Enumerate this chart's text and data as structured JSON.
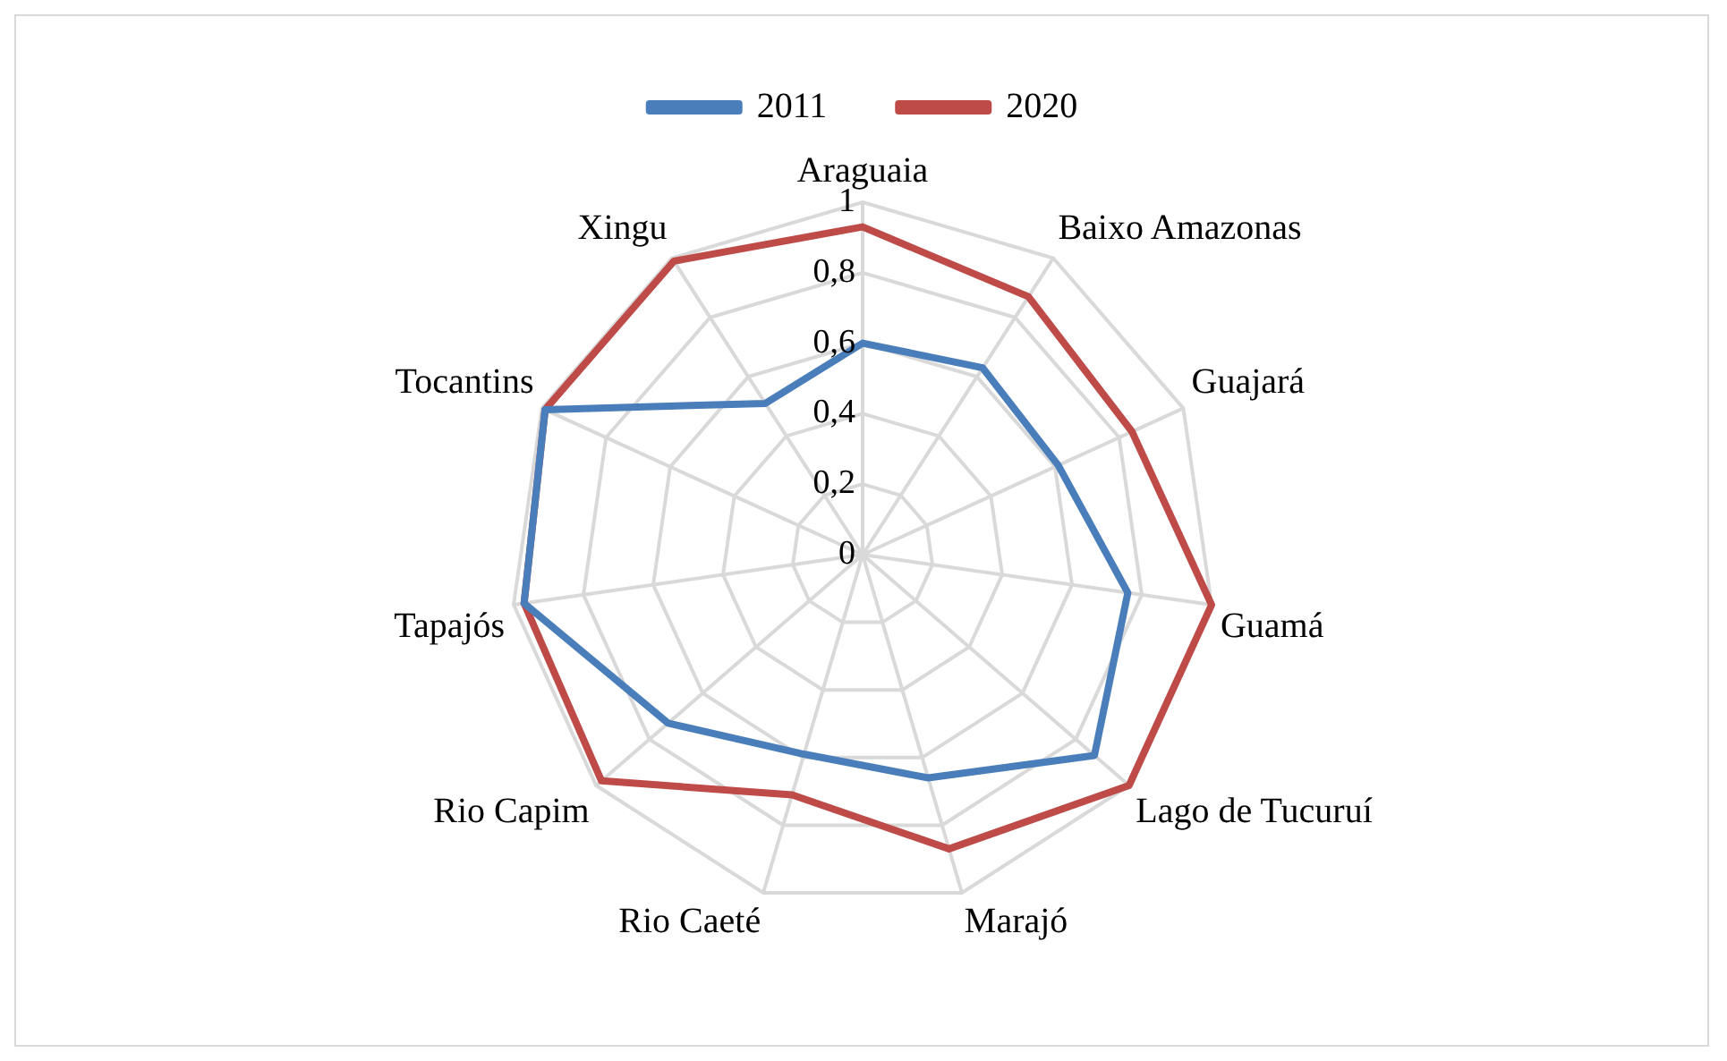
{
  "chart_data": {
    "type": "radar",
    "categories": [
      "Araguaia",
      "Baixo Amazonas",
      "Guajará",
      "Guamá",
      "Lago de Tucuruí",
      "Marajó",
      "Rio Caeté",
      "Rio Capim",
      "Tapajós",
      "Tocantins",
      "Xingu"
    ],
    "series": [
      {
        "name": "2011",
        "color": "#4a7ebb",
        "values": [
          0.6,
          0.63,
          0.61,
          0.76,
          0.87,
          0.66,
          0.59,
          0.73,
          0.97,
          0.99,
          0.51
        ]
      },
      {
        "name": "2020",
        "color": "#be4b48",
        "values": [
          0.93,
          0.87,
          0.84,
          1.0,
          1.0,
          0.87,
          0.71,
          0.98,
          0.97,
          0.99,
          0.99
        ]
      }
    ],
    "ylim": [
      0,
      1
    ],
    "yticks": [
      0,
      {
        "value": 0.2,
        "label": "0,2"
      },
      {
        "value": 0.4,
        "label": "0,4"
      },
      {
        "value": 0.6,
        "label": "0,6"
      },
      {
        "value": 0.8,
        "label": "0,8"
      },
      1
    ],
    "grid": true,
    "legend": "top",
    "marker": "none"
  }
}
